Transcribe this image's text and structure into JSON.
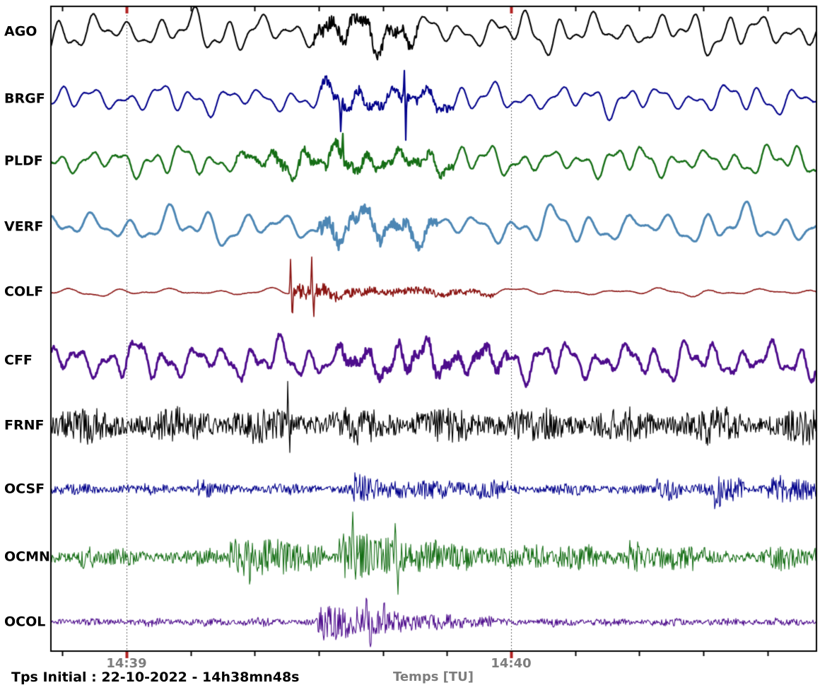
{
  "figure": {
    "background": "#ffffff",
    "footer_label": "Tps Initial : 22-10-2022 - 14h38mn48s",
    "axis_text_color": "#7d7d7d",
    "station_label_color": "#000000"
  },
  "chart_data": {
    "type": "line",
    "subtype": "seismogram-multitrace",
    "title": "",
    "xlabel": "Temps [TU]",
    "ylabel": "",
    "start_time": "22-10-2022 - 14h38mn48s",
    "window_seconds": 120,
    "grid": {
      "vertical_dotted_at_major_ticks": true,
      "color": "#333333"
    },
    "legend_position": "left-station-labels",
    "x_ticks_major": [
      {
        "label": "14:39",
        "t_s": 12
      },
      {
        "label": "14:40",
        "t_s": 72
      }
    ],
    "x_ticks_minor": {
      "start_s": 2,
      "interval_s": 10,
      "end_s": 112
    },
    "tick_colors": {
      "minor": "#000000",
      "major": "#b22222"
    },
    "stations": [
      "AGO",
      "BRGF",
      "PLDF",
      "VERF",
      "COLF",
      "CFF",
      "FRNF",
      "OCSF",
      "OCMN",
      "OCOL"
    ],
    "series": [
      {
        "name": "AGO",
        "color": "#000000",
        "line_width": 2.1,
        "seed": 11,
        "background_wave": {
          "amp": 26,
          "period_s": 5.2,
          "amp_mod_depth": 0.32,
          "amp_mod_period_s": 26
        },
        "noise_amp": 0.6,
        "noise_mod_depth": 0.15,
        "noise_mod_period_s": 17,
        "bursts": [
          {
            "from_s": 41.2,
            "to_s": 57.5,
            "amp_from": 10,
            "amp_to": 6
          }
        ],
        "spikes": []
      },
      {
        "name": "BRGF",
        "color": "#00008b",
        "line_width": 2.1,
        "seed": 22,
        "background_wave": {
          "amp": 20,
          "period_s": 5.2,
          "amp_mod_depth": 0.28,
          "amp_mod_period_s": 22
        },
        "noise_amp": 0.5,
        "noise_mod_depth": 0.15,
        "noise_mod_period_s": 19,
        "bursts": [
          {
            "from_s": 42.4,
            "to_s": 63.0,
            "amp_from": 8,
            "amp_to": 5
          }
        ],
        "spikes": [
          {
            "t_s": 45.4,
            "amp": -52
          },
          {
            "t_s": 55.3,
            "amp": 46
          },
          {
            "t_s": 55.6,
            "amp": -58
          }
        ]
      },
      {
        "name": "PLDF",
        "color": "#156e15",
        "line_width": 2.4,
        "seed": 33,
        "background_wave": {
          "amp": 20,
          "period_s": 4.8,
          "amp_mod_depth": 0.28,
          "amp_mod_period_s": 24
        },
        "noise_amp": 0.8,
        "noise_mod_depth": 0.15,
        "noise_mod_period_s": 16,
        "bursts": [
          {
            "from_s": 29.0,
            "to_s": 35.0,
            "amp_from": 3,
            "amp_to": 3
          },
          {
            "from_s": 35.0,
            "to_s": 63.0,
            "amp_from": 7,
            "amp_to": 4
          }
        ],
        "spikes": [
          {
            "t_s": 45.7,
            "amp": 36
          }
        ]
      },
      {
        "name": "VERF",
        "color": "#4c86b4",
        "line_width": 3.0,
        "seed": 44,
        "background_wave": {
          "amp": 24,
          "period_s": 6.0,
          "amp_mod_depth": 0.3,
          "amp_mod_period_s": 28
        },
        "noise_amp": 0.6,
        "noise_mod_depth": 0.15,
        "noise_mod_period_s": 18,
        "bursts": [
          {
            "from_s": 41.8,
            "to_s": 60.5,
            "amp_from": 11,
            "amp_to": 6
          }
        ],
        "spikes": []
      },
      {
        "name": "COLF",
        "color": "#8b1513",
        "line_width": 1.6,
        "seed": 55,
        "background_wave": {
          "amp": 5,
          "period_s": 7.7,
          "amp_mod_depth": 0.35,
          "amp_mod_period_s": 30
        },
        "noise_amp": 0.4,
        "noise_mod_depth": 0.15,
        "noise_mod_period_s": 20,
        "bursts": [
          {
            "from_s": 37.7,
            "to_s": 47.0,
            "amp_from": 13,
            "amp_to": 6
          },
          {
            "from_s": 47.0,
            "to_s": 69.4,
            "amp_from": 6,
            "amp_to": 3
          }
        ],
        "spikes": [
          {
            "t_s": 37.6,
            "amp": 48
          },
          {
            "t_s": 37.9,
            "amp": -40
          },
          {
            "t_s": 40.9,
            "amp": 42
          },
          {
            "t_s": 41.2,
            "amp": -30
          }
        ]
      },
      {
        "name": "CFF",
        "color": "#4d0c8c",
        "line_width": 3.0,
        "seed": 66,
        "background_wave": {
          "amp": 26,
          "period_s": 4.5,
          "amp_mod_depth": 0.25,
          "amp_mod_period_s": 21
        },
        "noise_amp": 3.0,
        "noise_mod_depth": 0.15,
        "noise_mod_period_s": 15,
        "bursts": [
          {
            "from_s": 45.1,
            "to_s": 71.6,
            "amp_from": 4,
            "amp_to": 4
          }
        ],
        "spikes": []
      },
      {
        "name": "FRNF",
        "color": "#000000",
        "line_width": 1.2,
        "seed": 77,
        "background_wave": {
          "amp": 3,
          "period_s": 2.2,
          "amp_mod_depth": 0.4,
          "amp_mod_period_s": 15
        },
        "noise_amp": 19,
        "noise_mod_depth": 0.35,
        "noise_mod_period_s": 14,
        "bursts": [],
        "spikes": [
          {
            "t_s": 37.2,
            "amp": 46
          },
          {
            "t_s": 37.5,
            "amp": -22
          }
        ]
      },
      {
        "name": "OCSF",
        "color": "#00008b",
        "line_width": 1.1,
        "seed": 88,
        "background_wave": {
          "amp": 1.5,
          "period_s": 3.0,
          "amp_mod_depth": 0.4,
          "amp_mod_period_s": 17
        },
        "noise_amp": 6,
        "noise_mod_depth": 0.3,
        "noise_mod_period_s": 11,
        "bursts": [
          {
            "from_s": 23.1,
            "to_s": 25.3,
            "amp_from": 9,
            "amp_to": 5
          },
          {
            "from_s": 47.3,
            "to_s": 51.7,
            "amp_from": 16,
            "amp_to": 9
          },
          {
            "from_s": 51.7,
            "to_s": 71.6,
            "amp_from": 8,
            "amp_to": 5
          },
          {
            "from_s": 94.7,
            "to_s": 98.6,
            "amp_from": 13,
            "amp_to": 7
          },
          {
            "from_s": 103.6,
            "to_s": 108.5,
            "amp_from": 21,
            "amp_to": 9
          },
          {
            "from_s": 111.8,
            "to_s": 120.0,
            "amp_from": 13,
            "amp_to": 10
          }
        ],
        "spikes": [
          {
            "t_s": 104.9,
            "amp": -34
          },
          {
            "t_s": 105.3,
            "amp": 24
          }
        ]
      },
      {
        "name": "OCMN",
        "color": "#156e15",
        "line_width": 1.1,
        "seed": 99,
        "background_wave": {
          "amp": 2,
          "period_s": 3.5,
          "amp_mod_depth": 0.4,
          "amp_mod_period_s": 19
        },
        "noise_amp": 9,
        "noise_mod_depth": 0.35,
        "noise_mod_period_s": 13,
        "bursts": [
          {
            "from_s": 4.3,
            "to_s": 7.1,
            "amp_from": 14,
            "amp_to": 6
          },
          {
            "from_s": 28.0,
            "to_s": 42.9,
            "amp_from": 20,
            "amp_to": 10
          },
          {
            "from_s": 45.1,
            "to_s": 60.5,
            "amp_from": 24,
            "amp_to": 12
          },
          {
            "from_s": 60.5,
            "to_s": 78.0,
            "amp_from": 8,
            "amp_to": 6
          },
          {
            "from_s": 79.3,
            "to_s": 85.4,
            "amp_from": 14,
            "amp_to": 8
          },
          {
            "from_s": 90.3,
            "to_s": 100.8,
            "amp_from": 14,
            "amp_to": 7
          },
          {
            "from_s": 112.4,
            "to_s": 119.8,
            "amp_from": 7,
            "amp_to": 5
          }
        ],
        "spikes": [
          {
            "t_s": 31.0,
            "amp": 30
          },
          {
            "t_s": 31.3,
            "amp": -46
          },
          {
            "t_s": 47.3,
            "amp": 44
          },
          {
            "t_s": 53.9,
            "amp": 36
          },
          {
            "t_s": 54.4,
            "amp": -30
          }
        ]
      },
      {
        "name": "OCOL",
        "color": "#4d0c8c",
        "line_width": 1.1,
        "seed": 111,
        "background_wave": {
          "amp": 1.2,
          "period_s": 3.0,
          "amp_mod_depth": 0.4,
          "amp_mod_period_s": 16
        },
        "noise_amp": 4.5,
        "noise_mod_depth": 0.3,
        "noise_mod_period_s": 9,
        "bursts": [
          {
            "from_s": 41.8,
            "to_s": 51.0,
            "amp_from": 22,
            "amp_to": 16
          },
          {
            "from_s": 51.0,
            "to_s": 60.5,
            "amp_from": 13,
            "amp_to": 6
          },
          {
            "from_s": 60.5,
            "to_s": 69.0,
            "amp_from": 5,
            "amp_to": 3
          }
        ],
        "spikes": [
          {
            "t_s": 49.5,
            "amp": 40
          },
          {
            "t_s": 50.0,
            "amp": -28
          },
          {
            "t_s": 52.2,
            "amp": 34
          }
        ]
      }
    ]
  }
}
